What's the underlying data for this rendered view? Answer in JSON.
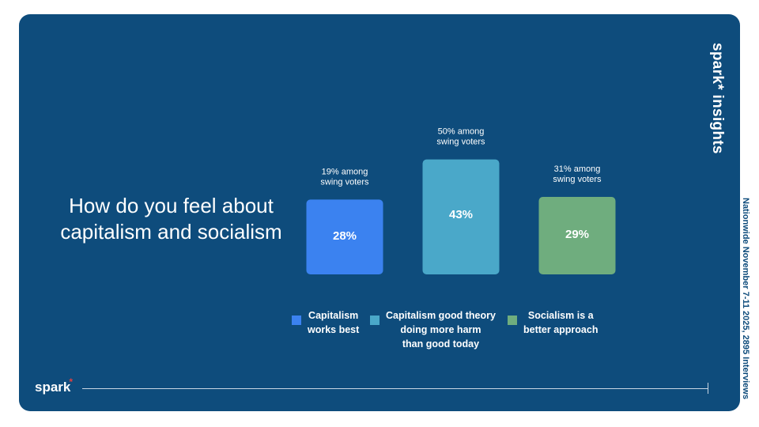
{
  "brand": {
    "name": "spark",
    "product": "insights"
  },
  "footnote": "Nationwide November 7-11 2025, 2895 Interviews",
  "colors": {
    "background": "#0e4c7c",
    "capitalism_best": "#3b82f0",
    "capitalism_harm": "#4aa8c9",
    "socialism_better": "#6fad7e"
  },
  "chart_data": {
    "type": "bar",
    "title": "How do you feel about capitalism and socialism",
    "categories": [
      "Capitalism works best",
      "Capitalism good theory doing more harm than good today",
      "Socialism is a better approach"
    ],
    "values": [
      28,
      43,
      29
    ],
    "value_labels": [
      "28%",
      "43%",
      "29%"
    ],
    "annotations": [
      [
        "19% among",
        "swing voters"
      ],
      [
        "50% among",
        "swing voters"
      ],
      [
        "31% among",
        "swing voters"
      ]
    ],
    "swing_voter_values": [
      19,
      50,
      31
    ],
    "colors": [
      "#3b82f0",
      "#4aa8c9",
      "#6fad7e"
    ],
    "ylim": [
      0,
      50
    ],
    "legend": {
      "placement": "bottom",
      "items": [
        {
          "lines": [
            "Capitalism",
            "works best"
          ],
          "color": "#3b82f0"
        },
        {
          "lines": [
            "Capitalism good theory",
            "doing more harm",
            "than good today"
          ],
          "color": "#4aa8c9"
        },
        {
          "lines": [
            "Socialism is a",
            "better approach"
          ],
          "color": "#6fad7e"
        }
      ]
    }
  }
}
